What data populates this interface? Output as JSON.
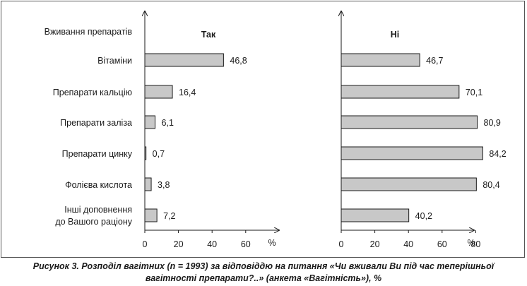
{
  "chart_data": {
    "type": "bar",
    "orientation": "horizontal",
    "category_header": "Вживання препаратів",
    "categories": [
      [
        "Вітаміни"
      ],
      [
        "Препарати кальцію"
      ],
      [
        "Препарати заліза"
      ],
      [
        "Препарати цинку"
      ],
      [
        "Фолієва кислота"
      ],
      [
        "Інші доповнення",
        "до Вашого раціону"
      ]
    ],
    "panels": [
      {
        "title": "Так",
        "values": [
          46.8,
          16.4,
          6.1,
          0.7,
          3.8,
          7.2
        ],
        "value_labels": [
          "46,8",
          "16,4",
          "6,1",
          "0,7",
          "3,8",
          "7,2"
        ],
        "xlim": [
          0,
          80
        ],
        "ticks": [
          0,
          20,
          40,
          60
        ],
        "tick_labels": [
          "0",
          "20",
          "40",
          "60"
        ],
        "unit_label": "%"
      },
      {
        "title": "Ні",
        "values": [
          46.7,
          70.1,
          80.9,
          84.2,
          80.4,
          40.2
        ],
        "value_labels": [
          "46,7",
          "70,1",
          "80,9",
          "84,2",
          "80,4",
          "40,2"
        ],
        "xlim": [
          0,
          80
        ],
        "ticks": [
          0,
          20,
          40,
          60,
          80
        ],
        "tick_labels": [
          "0",
          "20",
          "40",
          "60",
          "80"
        ],
        "unit_label": "%"
      }
    ],
    "bar_color": "#c8c8c8",
    "bar_stroke": "#1a1a1a"
  },
  "caption": {
    "line1": "Рисунок 3. Розподіл вагітних (n = 1993) за відповіддю на питання «Чи вживали Ви під час теперішньої",
    "line2": "вагітності препарати?..» (анкета «Вагітність»), %"
  }
}
